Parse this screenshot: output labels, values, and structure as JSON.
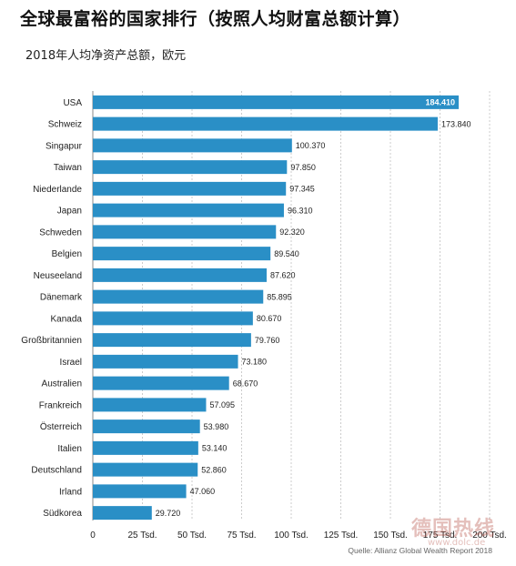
{
  "watermark": "德国热线",
  "watermark_sub": "www.dolc.de",
  "colors": {
    "bar": "#2a8fc6",
    "grid": "#cccccc",
    "text": "#222222"
  },
  "chart_data": {
    "type": "bar",
    "orientation": "horizontal",
    "title": "全球最富裕的国家排行（按照人均财富总额计算）",
    "subtitle": "2018年人均净资产总额，欧元",
    "source": "Quelle: Allianz Global Wealth Report 2018",
    "categories": [
      "USA",
      "Schweiz",
      "Singapur",
      "Taiwan",
      "Niederlande",
      "Japan",
      "Schweden",
      "Belgien",
      "Neuseeland",
      "Dänemark",
      "Kanada",
      "Großbritannien",
      "Israel",
      "Australien",
      "Frankreich",
      "Österreich",
      "Italien",
      "Deutschland",
      "Irland",
      "Südkorea"
    ],
    "values": [
      184410,
      173840,
      100370,
      97850,
      97345,
      96310,
      92320,
      89540,
      87620,
      85895,
      80670,
      79760,
      73180,
      68670,
      57095,
      53980,
      53140,
      52860,
      47060,
      29720
    ],
    "value_labels": [
      "184.410",
      "173.840",
      "100.370",
      "97.850",
      "97.345",
      "96.310",
      "92.320",
      "89.540",
      "87.620",
      "85.895",
      "80.670",
      "79.760",
      "73.180",
      "68.670",
      "57.095",
      "53.980",
      "53.140",
      "52.860",
      "47.060",
      "29.720"
    ],
    "xlim": [
      0,
      200000
    ],
    "xticks": [
      0,
      25000,
      50000,
      75000,
      100000,
      125000,
      150000,
      175000,
      200000
    ],
    "xtick_labels": [
      "0",
      "25 Tsd.",
      "50 Tsd.",
      "75 Tsd.",
      "100 Tsd.",
      "125 Tsd.",
      "150 Tsd.",
      "175 Tsd.",
      "200 Tsd."
    ],
    "grid": true,
    "legend": "none"
  }
}
